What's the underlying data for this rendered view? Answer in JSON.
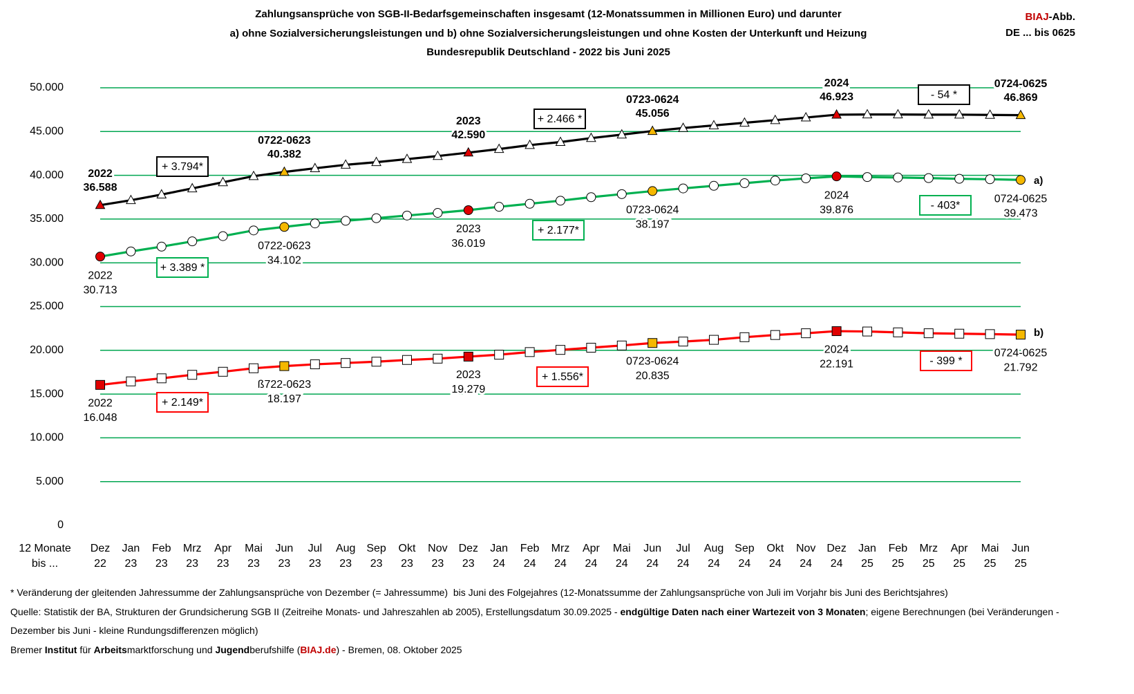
{
  "chart_data": {
    "type": "line",
    "title": [
      "Zahlungsansprüche von SGB-II-Bedarfsgemeinschaften insgesamt (12-Monatssummen in Millionen Euro) und darunter",
      "a) ohne Sozialversicherungsleistungen und b) ohne Sozialversicherungsleistungen und ohne Kosten der Unterkunft und Heizung",
      "Bundesrepublik Deutschland - 2022 bis Juni 2025"
    ],
    "brand": "BIAJ",
    "brand_color": "#c00000",
    "brand_suffix": "-Abb.",
    "brand_line2": "DE ... bis 0625",
    "x_axis_label": "12 Monate\nbis ...",
    "categories": [
      "Dez\n22",
      "Jan\n23",
      "Feb\n23",
      "Mrz\n23",
      "Apr\n23",
      "Mai\n23",
      "Jun\n23",
      "Jul\n23",
      "Aug\n23",
      "Sep\n23",
      "Okt\n23",
      "Nov\n23",
      "Dez\n23",
      "Jan\n24",
      "Feb\n24",
      "Mrz\n24",
      "Apr\n24",
      "Mai\n24",
      "Jun\n24",
      "Jul\n24",
      "Aug\n24",
      "Sep\n24",
      "Okt\n24",
      "Nov\n24",
      "Dez\n24",
      "Jan\n25",
      "Feb\n25",
      "Mrz\n25",
      "Apr\n25",
      "Mai\n25",
      "Jun\n25"
    ],
    "ylim": [
      0,
      50000
    ],
    "yticks": [
      0,
      {
        "value": 5000,
        "label": "5.000"
      },
      {
        "value": 10000,
        "label": "10.000"
      },
      {
        "value": 15000,
        "label": "15.000"
      },
      {
        "value": 20000,
        "label": "20.000"
      },
      {
        "value": 25000,
        "label": "25.000"
      },
      {
        "value": 30000,
        "label": "30.000"
      },
      {
        "value": 35000,
        "label": "35.000"
      },
      {
        "value": 40000,
        "label": "40.000"
      },
      {
        "value": 45000,
        "label": "45.000"
      },
      {
        "value": 50000,
        "label": "50.000"
      }
    ],
    "grid": true,
    "grid_color": "#00a650",
    "marker_colors": [
      "#e00000",
      "#fff",
      "#fff",
      "#fff",
      "#fff",
      "#fff",
      "#f5b800",
      "#fff",
      "#fff",
      "#fff",
      "#fff",
      "#fff",
      "#e00000",
      "#fff",
      "#fff",
      "#fff",
      "#fff",
      "#fff",
      "#f5b800",
      "#fff",
      "#fff",
      "#fff",
      "#fff",
      "#fff",
      "#e00000",
      "#fff",
      "#fff",
      "#fff",
      "#fff",
      "#fff",
      "#f5b800"
    ],
    "series": [
      {
        "color": "#000000",
        "marker": "triangle",
        "label_bold": true,
        "values": [
          36588,
          37150,
          37800,
          38500,
          39200,
          39900,
          40382,
          40800,
          41200,
          41500,
          41850,
          42200,
          42590,
          43000,
          43450,
          43800,
          44250,
          44650,
          45056,
          45400,
          45700,
          46000,
          46300,
          46600,
          46923,
          46950,
          46950,
          46930,
          46930,
          46900,
          46869
        ],
        "value_labels": [
          "36.588",
          null,
          null,
          null,
          null,
          null,
          "40.382",
          null,
          null,
          null,
          null,
          null,
          "42.590",
          null,
          null,
          null,
          null,
          null,
          "45.056",
          null,
          null,
          null,
          null,
          null,
          "46.923",
          null,
          null,
          null,
          null,
          null,
          "46.869"
        ],
        "period_labels": [
          "2022",
          null,
          null,
          null,
          null,
          null,
          "0722-0623",
          null,
          null,
          null,
          null,
          null,
          "2023",
          null,
          null,
          null,
          null,
          null,
          "0723-0624",
          null,
          null,
          null,
          null,
          null,
          "2024",
          null,
          null,
          null,
          null,
          null,
          "0724-0625"
        ],
        "changes": [
          "+ 3.794*",
          "+ 2.466 *",
          "- 54 *"
        ]
      },
      {
        "name": "a)",
        "color": "#00b050",
        "marker": "circle",
        "label_bold": false,
        "values": [
          30713,
          31300,
          31850,
          32450,
          33050,
          33700,
          34102,
          34500,
          34800,
          35100,
          35400,
          35700,
          36019,
          36400,
          36750,
          37100,
          37500,
          37850,
          38197,
          38500,
          38800,
          39100,
          39400,
          39650,
          39876,
          39800,
          39750,
          39680,
          39600,
          39550,
          39473
        ],
        "value_labels": [
          "30.713",
          null,
          null,
          null,
          null,
          null,
          "34.102",
          null,
          null,
          null,
          null,
          null,
          "36.019",
          null,
          null,
          null,
          null,
          null,
          "38.197",
          null,
          null,
          null,
          null,
          null,
          "39.876",
          null,
          null,
          null,
          null,
          null,
          "39.473"
        ],
        "period_labels": [
          "2022",
          null,
          null,
          null,
          null,
          null,
          "0722-0623",
          null,
          null,
          null,
          null,
          null,
          "2023",
          null,
          null,
          null,
          null,
          null,
          "0723-0624",
          null,
          null,
          null,
          null,
          null,
          "2024",
          null,
          null,
          null,
          null,
          null,
          "0724-0625"
        ],
        "changes": [
          "+ 3.389 *",
          "+ 2.177*",
          "- 403*"
        ]
      },
      {
        "name": "b)",
        "color": "#ff0000",
        "marker": "square",
        "label_bold": false,
        "values": [
          16048,
          16450,
          16800,
          17200,
          17550,
          17950,
          18197,
          18400,
          18550,
          18700,
          18900,
          19050,
          19279,
          19500,
          19800,
          20050,
          20300,
          20550,
          20835,
          21000,
          21200,
          21500,
          21750,
          21950,
          22191,
          22150,
          22050,
          21950,
          21900,
          21850,
          21792
        ],
        "value_labels": [
          "16.048",
          null,
          null,
          null,
          null,
          null,
          "18.197",
          null,
          null,
          null,
          null,
          null,
          "19.279",
          null,
          null,
          null,
          null,
          null,
          "20.835",
          null,
          null,
          null,
          null,
          null,
          "22.191",
          null,
          null,
          null,
          null,
          null,
          "21.792"
        ],
        "period_labels": [
          "2022",
          null,
          null,
          null,
          null,
          null,
          "ß722-0623",
          null,
          null,
          null,
          null,
          null,
          "2023",
          null,
          null,
          null,
          null,
          null,
          "0723-0624",
          null,
          null,
          null,
          null,
          null,
          "2024",
          null,
          null,
          null,
          null,
          null,
          "0724-0625"
        ],
        "changes": [
          "+ 2.149*",
          "+ 1.556*",
          "- 399 *"
        ]
      }
    ],
    "footnotes": [
      [
        {
          "text": "* Veränderung der gleitenden Jahressumme der Zahlungsansprüche von Dezember (= Jahressumme)  bis Juni des Folgejahres (12-Monatssumme der Zahlungsansprüche von Juli im Vorjahr bis Juni des Berichtsjahres)"
        }
      ],
      [
        {
          "text": "Quelle: Statistik der BA, Strukturen der Grundsicherung SGB II (Zeitreihe Monats- und Jahreszahlen ab 2005), Erstellungsdatum 30.09.2025 - "
        },
        {
          "text": "endgültige Daten nach einer Wartezeit von 3 Monaten",
          "bold": true
        },
        {
          "text": "; eigene Berechnungen (bei Veränderungen -"
        }
      ],
      [
        {
          "text": "Dezember bis Juni - kleine Rundungsdifferenzen möglich)"
        }
      ],
      [
        {
          "text": "Bremer "
        },
        {
          "text": "Institut",
          "bold": true
        },
        {
          "text": " für "
        },
        {
          "text": "Arbeits",
          "bold": true
        },
        {
          "text": "marktforschung und "
        },
        {
          "text": "Jugend",
          "bold": true
        },
        {
          "text": "berufshilfe ("
        },
        {
          "text": "BIAJ.de",
          "bold": true,
          "color": "#c00000"
        },
        {
          "text": ") - Bremen, 08. Oktober 2025"
        }
      ]
    ]
  }
}
